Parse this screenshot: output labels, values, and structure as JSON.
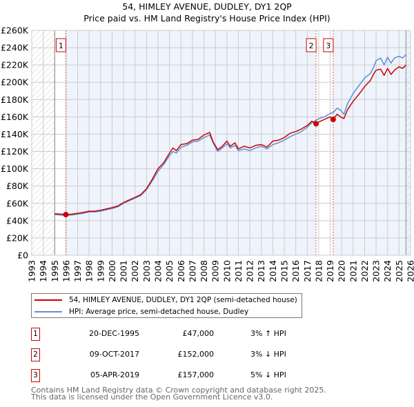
{
  "title": {
    "line1": "54, HIMLEY AVENUE, DUDLEY, DY1 2QP",
    "line2": "Price paid vs. HM Land Registry's House Price Index (HPI)"
  },
  "colors": {
    "price": "#cc0000",
    "hpi": "#5b8fd4",
    "grid": "#cccccc",
    "shade": "#eef3fc"
  },
  "chart_data": {
    "type": "line",
    "xlim": [
      1993,
      2026
    ],
    "ylim": [
      0,
      260000
    ],
    "x_ticks": [
      1993,
      1994,
      1995,
      1996,
      1997,
      1998,
      1999,
      2000,
      2001,
      2002,
      2003,
      2004,
      2005,
      2006,
      2007,
      2008,
      2009,
      2010,
      2011,
      2012,
      2013,
      2014,
      2015,
      2016,
      2017,
      2018,
      2019,
      2020,
      2021,
      2022,
      2023,
      2024,
      2025,
      2026
    ],
    "y_ticks": [
      {
        "v": 0,
        "label": "£0"
      },
      {
        "v": 20000,
        "label": "£20K"
      },
      {
        "v": 40000,
        "label": "£40K"
      },
      {
        "v": 60000,
        "label": "£60K"
      },
      {
        "v": 80000,
        "label": "£80K"
      },
      {
        "v": 100000,
        "label": "£100K"
      },
      {
        "v": 120000,
        "label": "£120K"
      },
      {
        "v": 140000,
        "label": "£140K"
      },
      {
        "v": 160000,
        "label": "£160K"
      },
      {
        "v": 180000,
        "label": "£180K"
      },
      {
        "v": 200000,
        "label": "£200K"
      },
      {
        "v": 220000,
        "label": "£220K"
      },
      {
        "v": 240000,
        "label": "£240K"
      },
      {
        "v": 260000,
        "label": "£260K"
      }
    ],
    "hatched_ranges": [
      [
        1993,
        1995
      ],
      [
        2025.6,
        2026
      ]
    ],
    "series": [
      {
        "name": "54, HIMLEY AVENUE, DUDLEY, DY1 2QP (semi-detached house)",
        "color": "#cc0000",
        "x": [
          1995,
          1995.5,
          1996,
          1996.5,
          1997,
          1997.5,
          1998,
          1998.5,
          1999,
          1999.5,
          2000,
          2000.5,
          2001,
          2001.5,
          2002,
          2002.5,
          2003,
          2003.5,
          2004,
          2004.5,
          2005,
          2005.3,
          2005.6,
          2006,
          2006.5,
          2007,
          2007.5,
          2008,
          2008.5,
          2008.8,
          2009.2,
          2009.6,
          2010,
          2010.3,
          2010.7,
          2011,
          2011.5,
          2012,
          2012.5,
          2013,
          2013.5,
          2014,
          2014.5,
          2015,
          2015.5,
          2016,
          2016.5,
          2017,
          2017.4,
          2017.77,
          2018,
          2018.5,
          2019,
          2019.26,
          2019.6,
          2019.9,
          2020.2,
          2020.5,
          2021,
          2021.5,
          2022,
          2022.5,
          2022.8,
          2023,
          2023.4,
          2023.7,
          2024,
          2024.3,
          2024.6,
          2025,
          2025.3,
          2025.6
        ],
        "y": [
          48000,
          47500,
          47000,
          47500,
          48500,
          49500,
          51000,
          51000,
          52000,
          53500,
          55000,
          57000,
          61000,
          64000,
          67000,
          70000,
          77000,
          88000,
          100000,
          107000,
          118000,
          124000,
          121000,
          128000,
          129000,
          133000,
          134000,
          139000,
          142000,
          131000,
          122000,
          126000,
          132000,
          126000,
          130000,
          123000,
          126000,
          124000,
          127000,
          128000,
          125000,
          132000,
          133000,
          136000,
          141000,
          143000,
          146000,
          150000,
          155000,
          152000,
          154000,
          157000,
          160000,
          157000,
          163000,
          160000,
          158000,
          168000,
          178000,
          186000,
          195000,
          202000,
          210000,
          214000,
          215000,
          208000,
          216000,
          209000,
          214000,
          218000,
          216000,
          220000
        ]
      },
      {
        "name": "HPI: Average price, semi-detached house, Dudley",
        "color": "#5b8fd4",
        "x": [
          1995,
          1995.5,
          1996,
          1996.5,
          1997,
          1997.5,
          1998,
          1998.5,
          1999,
          1999.5,
          2000,
          2000.5,
          2001,
          2001.5,
          2002,
          2002.5,
          2003,
          2003.5,
          2004,
          2004.5,
          2005,
          2005.3,
          2005.6,
          2006,
          2006.5,
          2007,
          2007.5,
          2008,
          2008.5,
          2008.8,
          2009.2,
          2009.6,
          2010,
          2010.3,
          2010.7,
          2011,
          2011.5,
          2012,
          2012.5,
          2013,
          2013.5,
          2014,
          2014.5,
          2015,
          2015.5,
          2016,
          2016.5,
          2017,
          2017.4,
          2017.77,
          2018,
          2018.5,
          2019,
          2019.26,
          2019.6,
          2019.9,
          2020.2,
          2020.5,
          2021,
          2021.5,
          2022,
          2022.5,
          2022.8,
          2023,
          2023.4,
          2023.7,
          2024,
          2024.3,
          2024.6,
          2025,
          2025.3,
          2025.6
        ],
        "y": [
          47000,
          46500,
          46000,
          46500,
          47500,
          48500,
          50000,
          50000,
          51000,
          52500,
          54000,
          56000,
          60000,
          63000,
          66000,
          69000,
          76000,
          86000,
          97000,
          105000,
          115000,
          120000,
          118000,
          125000,
          127000,
          131000,
          132000,
          136000,
          139000,
          130000,
          120000,
          124000,
          129000,
          124000,
          127000,
          121000,
          123000,
          121000,
          124000,
          126000,
          123000,
          128000,
          130000,
          133000,
          137000,
          140000,
          143000,
          148000,
          153000,
          156000,
          158000,
          160000,
          164000,
          165000,
          170000,
          168000,
          163000,
          175000,
          187000,
          196000,
          205000,
          210000,
          218000,
          225000,
          228000,
          220000,
          229000,
          222000,
          228000,
          230000,
          228000,
          232000
        ]
      }
    ],
    "sales": [
      {
        "id": "1",
        "x": 1995.97,
        "y": 47000
      },
      {
        "id": "2",
        "x": 2017.77,
        "y": 152000
      },
      {
        "id": "3",
        "x": 2019.26,
        "y": 157000
      }
    ]
  },
  "legend": [
    {
      "label": "54, HIMLEY AVENUE, DUDLEY, DY1 2QP (semi-detached house)",
      "color": "#cc0000"
    },
    {
      "label": "HPI: Average price, semi-detached house, Dudley",
      "color": "#5b8fd4"
    }
  ],
  "sales_table": [
    {
      "num": "1",
      "date": "20-DEC-1995",
      "price": "£47,000",
      "hpi": "3% ↑ HPI"
    },
    {
      "num": "2",
      "date": "09-OCT-2017",
      "price": "£152,000",
      "hpi": "3% ↓ HPI"
    },
    {
      "num": "3",
      "date": "05-APR-2019",
      "price": "£157,000",
      "hpi": "5% ↓ HPI"
    }
  ],
  "footer": {
    "line1": "Contains HM Land Registry data © Crown copyright and database right 2025.",
    "line2": "This data is licensed under the Open Government Licence v3.0."
  }
}
